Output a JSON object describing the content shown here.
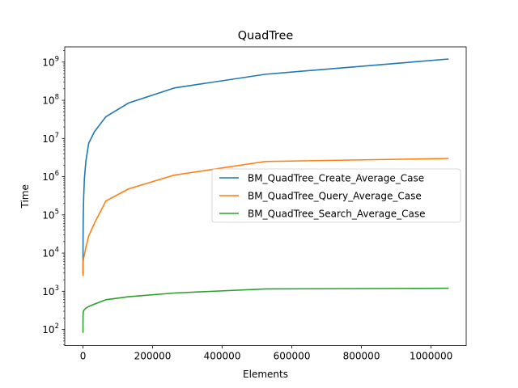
{
  "chart_data": {
    "type": "line",
    "title": "QuadTree",
    "xlabel": "Elements",
    "ylabel": "Time",
    "yscale": "log",
    "xlim": [
      -52400,
      1101000
    ],
    "ylim": [
      37.7,
      2500000000
    ],
    "xticks": [
      0,
      200000,
      400000,
      600000,
      800000,
      1000000
    ],
    "xtick_labels": [
      "0",
      "200000",
      "400000",
      "600000",
      "800000",
      "1000000"
    ],
    "yticks": [
      100,
      1000,
      10000,
      100000,
      1000000,
      10000000,
      100000000,
      1000000000
    ],
    "ytick_labels": [
      {
        "base": "10",
        "exp": "2"
      },
      {
        "base": "10",
        "exp": "3"
      },
      {
        "base": "10",
        "exp": "4"
      },
      {
        "base": "10",
        "exp": "5"
      },
      {
        "base": "10",
        "exp": "6"
      },
      {
        "base": "10",
        "exp": "7"
      },
      {
        "base": "10",
        "exp": "8"
      },
      {
        "base": "10",
        "exp": "9"
      }
    ],
    "grid": false,
    "legend_position": "center-right",
    "x": [
      1,
      2,
      4,
      8,
      16,
      32,
      64,
      128,
      256,
      512,
      1024,
      2048,
      4096,
      8192,
      16384,
      32768,
      65536,
      131072,
      262144,
      524288,
      1048576
    ],
    "series": [
      {
        "name": "BM_QuadTree_Create_Average_Case",
        "color": "#1f77b4",
        "values": [
          3000,
          3100,
          3300,
          3600,
          4200,
          5500,
          8000,
          13000,
          25000,
          55000,
          120000,
          300000,
          900000,
          2500000,
          7500000,
          15000000,
          37000000,
          85000000,
          210000000,
          480000000,
          1200000000
        ]
      },
      {
        "name": "BM_QuadTree_Query_Average_Case",
        "color": "#ff7f0e",
        "values": [
          2600,
          2700,
          2800,
          2900,
          3000,
          3200,
          3500,
          4000,
          4800,
          5500,
          6500,
          7500,
          9000,
          14000,
          28000,
          60000,
          230000,
          480000,
          1100000,
          2500000,
          3000000
        ]
      },
      {
        "name": "BM_QuadTree_Search_Average_Case",
        "color": "#2ca02c",
        "values": [
          85,
          90,
          100,
          115,
          130,
          150,
          170,
          200,
          230,
          260,
          290,
          310,
          330,
          360,
          400,
          460,
          600,
          720,
          900,
          1150,
          1200
        ]
      }
    ]
  }
}
